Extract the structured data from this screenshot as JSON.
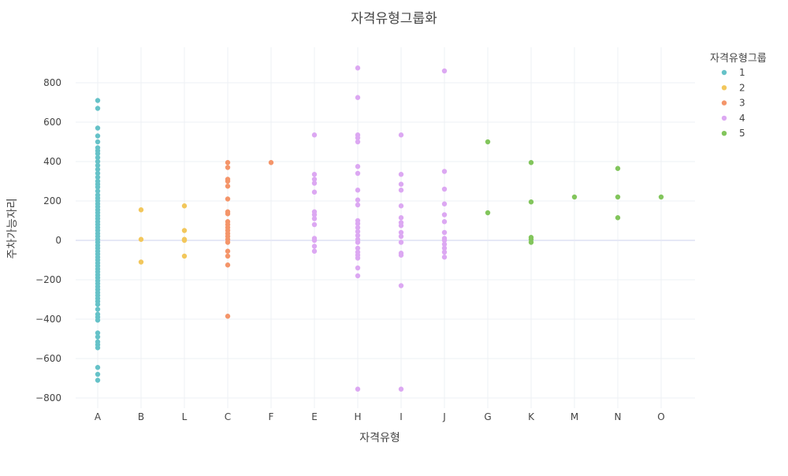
{
  "chart_data": {
    "type": "scatter",
    "title": "자격유형그룹화",
    "xlabel": "자격유형",
    "ylabel": "주차가능자리",
    "categories": [
      "A",
      "B",
      "L",
      "C",
      "F",
      "E",
      "H",
      "I",
      "J",
      "G",
      "K",
      "M",
      "N",
      "O"
    ],
    "yticks": [
      -800,
      -600,
      -400,
      -200,
      0,
      200,
      400,
      600,
      800
    ],
    "ylim": [
      -850,
      975
    ],
    "grid": true,
    "legend": {
      "title": "자격유형그룹",
      "position": "top-right"
    },
    "series": [
      {
        "name": "1",
        "color": "#66c2c8",
        "points": [
          [
            "A",
            710
          ],
          [
            "A",
            670
          ],
          [
            "A",
            570
          ],
          [
            "A",
            530
          ],
          [
            "A",
            500
          ],
          [
            "A",
            470
          ],
          [
            "A",
            455
          ],
          [
            "A",
            440
          ],
          [
            "A",
            420
          ],
          [
            "A",
            400
          ],
          [
            "A",
            380
          ],
          [
            "A",
            360
          ],
          [
            "A",
            340
          ],
          [
            "A",
            320
          ],
          [
            "A",
            300
          ],
          [
            "A",
            285
          ],
          [
            "A",
            270
          ],
          [
            "A",
            250
          ],
          [
            "A",
            230
          ],
          [
            "A",
            215
          ],
          [
            "A",
            200
          ],
          [
            "A",
            185
          ],
          [
            "A",
            170
          ],
          [
            "A",
            155
          ],
          [
            "A",
            140
          ],
          [
            "A",
            125
          ],
          [
            "A",
            110
          ],
          [
            "A",
            95
          ],
          [
            "A",
            80
          ],
          [
            "A",
            65
          ],
          [
            "A",
            50
          ],
          [
            "A",
            35
          ],
          [
            "A",
            20
          ],
          [
            "A",
            5
          ],
          [
            "A",
            -10
          ],
          [
            "A",
            -25
          ],
          [
            "A",
            -40
          ],
          [
            "A",
            -55
          ],
          [
            "A",
            -70
          ],
          [
            "A",
            -85
          ],
          [
            "A",
            -100
          ],
          [
            "A",
            -115
          ],
          [
            "A",
            -130
          ],
          [
            "A",
            -145
          ],
          [
            "A",
            -160
          ],
          [
            "A",
            -175
          ],
          [
            "A",
            -190
          ],
          [
            "A",
            -205
          ],
          [
            "A",
            -220
          ],
          [
            "A",
            -235
          ],
          [
            "A",
            -250
          ],
          [
            "A",
            -265
          ],
          [
            "A",
            -280
          ],
          [
            "A",
            -295
          ],
          [
            "A",
            -310
          ],
          [
            "A",
            -325
          ],
          [
            "A",
            -350
          ],
          [
            "A",
            -375
          ],
          [
            "A",
            -390
          ],
          [
            "A",
            -405
          ],
          [
            "A",
            -470
          ],
          [
            "A",
            -490
          ],
          [
            "A",
            -515
          ],
          [
            "A",
            -530
          ],
          [
            "A",
            -545
          ],
          [
            "A",
            -645
          ],
          [
            "A",
            -680
          ],
          [
            "A",
            -710
          ]
        ]
      },
      {
        "name": "2",
        "color": "#f2c75c",
        "points": [
          [
            "B",
            155
          ],
          [
            "B",
            5
          ],
          [
            "B",
            -110
          ],
          [
            "L",
            175
          ],
          [
            "L",
            50
          ],
          [
            "L",
            5
          ],
          [
            "L",
            0
          ],
          [
            "L",
            -80
          ]
        ]
      },
      {
        "name": "3",
        "color": "#f4956a",
        "points": [
          [
            "C",
            395
          ],
          [
            "C",
            370
          ],
          [
            "C",
            310
          ],
          [
            "C",
            300
          ],
          [
            "C",
            275
          ],
          [
            "C",
            210
          ],
          [
            "C",
            145
          ],
          [
            "C",
            135
          ],
          [
            "C",
            95
          ],
          [
            "C",
            80
          ],
          [
            "C",
            65
          ],
          [
            "C",
            50
          ],
          [
            "C",
            35
          ],
          [
            "C",
            20
          ],
          [
            "C",
            5
          ],
          [
            "C",
            -10
          ],
          [
            "C",
            -55
          ],
          [
            "C",
            -80
          ],
          [
            "C",
            -125
          ],
          [
            "C",
            -385
          ],
          [
            "F",
            395
          ]
        ]
      },
      {
        "name": "4",
        "color": "#dca8f2",
        "points": [
          [
            "E",
            535
          ],
          [
            "E",
            335
          ],
          [
            "E",
            310
          ],
          [
            "E",
            290
          ],
          [
            "E",
            245
          ],
          [
            "E",
            145
          ],
          [
            "E",
            130
          ],
          [
            "E",
            110
          ],
          [
            "E",
            80
          ],
          [
            "E",
            10
          ],
          [
            "E",
            0
          ],
          [
            "E",
            -30
          ],
          [
            "E",
            -55
          ],
          [
            "H",
            875
          ],
          [
            "H",
            725
          ],
          [
            "H",
            535
          ],
          [
            "H",
            520
          ],
          [
            "H",
            500
          ],
          [
            "H",
            375
          ],
          [
            "H",
            340
          ],
          [
            "H",
            255
          ],
          [
            "H",
            205
          ],
          [
            "H",
            180
          ],
          [
            "H",
            100
          ],
          [
            "H",
            85
          ],
          [
            "H",
            65
          ],
          [
            "H",
            45
          ],
          [
            "H",
            25
          ],
          [
            "H",
            5
          ],
          [
            "H",
            -10
          ],
          [
            "H",
            -40
          ],
          [
            "H",
            -60
          ],
          [
            "H",
            -75
          ],
          [
            "H",
            -90
          ],
          [
            "H",
            -140
          ],
          [
            "H",
            -180
          ],
          [
            "H",
            -755
          ],
          [
            "I",
            535
          ],
          [
            "I",
            335
          ],
          [
            "I",
            285
          ],
          [
            "I",
            255
          ],
          [
            "I",
            175
          ],
          [
            "I",
            115
          ],
          [
            "I",
            90
          ],
          [
            "I",
            75
          ],
          [
            "I",
            40
          ],
          [
            "I",
            20
          ],
          [
            "I",
            -10
          ],
          [
            "I",
            -65
          ],
          [
            "I",
            -75
          ],
          [
            "I",
            -230
          ],
          [
            "I",
            -755
          ],
          [
            "J",
            860
          ],
          [
            "J",
            350
          ],
          [
            "J",
            260
          ],
          [
            "J",
            185
          ],
          [
            "J",
            130
          ],
          [
            "J",
            95
          ],
          [
            "J",
            40
          ],
          [
            "J",
            10
          ],
          [
            "J",
            0
          ],
          [
            "J",
            -20
          ],
          [
            "J",
            -40
          ],
          [
            "J",
            -60
          ],
          [
            "J",
            -85
          ]
        ]
      },
      {
        "name": "5",
        "color": "#82c55c",
        "points": [
          [
            "G",
            500
          ],
          [
            "G",
            140
          ],
          [
            "K",
            395
          ],
          [
            "K",
            195
          ],
          [
            "K",
            15
          ],
          [
            "K",
            5
          ],
          [
            "K",
            -10
          ],
          [
            "M",
            220
          ],
          [
            "N",
            365
          ],
          [
            "N",
            220
          ],
          [
            "N",
            115
          ],
          [
            "O",
            220
          ]
        ]
      }
    ]
  }
}
